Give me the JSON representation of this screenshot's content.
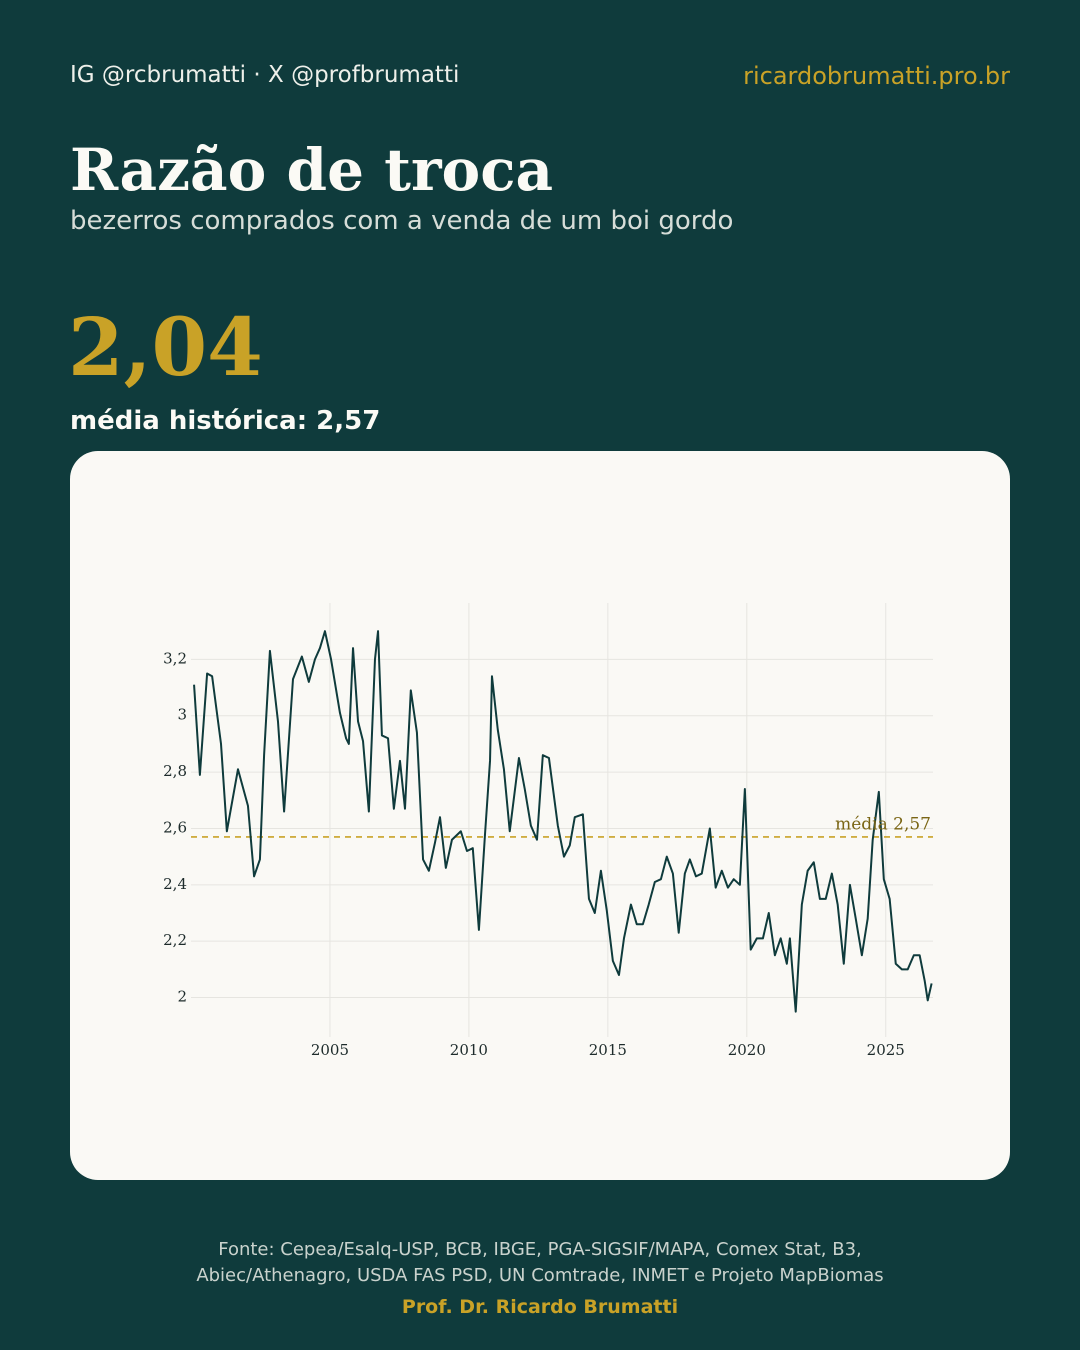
{
  "header": {
    "handle": "IG @rcbrumatti · X @profbrumatti",
    "site": "ricardobrumatti.pro.br",
    "title": "Razão de troca",
    "subtitle": "bezerros comprados com a venda de um boi gordo",
    "headline": "2,04",
    "average_label": "média histórica: 2,57"
  },
  "chart_data": {
    "type": "line",
    "color": "#0f3b3c",
    "x": [
      2000.11,
      2000.32,
      2000.58,
      2000.76,
      2001.08,
      2001.29,
      2001.69,
      2002.05,
      2002.27,
      2002.48,
      2002.63,
      2002.84,
      2003.13,
      2003.35,
      2003.67,
      2003.99,
      2004.24,
      2004.46,
      2004.64,
      2004.82,
      2005.04,
      2005.36,
      2005.58,
      2005.68,
      2005.83,
      2006.01,
      2006.19,
      2006.4,
      2006.62,
      2006.73,
      2006.87,
      2007.09,
      2007.3,
      2007.52,
      2007.7,
      2007.91,
      2008.13,
      2008.35,
      2008.56,
      2008.78,
      2008.96,
      2009.17,
      2009.39,
      2009.71,
      2009.93,
      2010.14,
      2010.36,
      2010.58,
      2010.76,
      2010.83,
      2011.04,
      2011.26,
      2011.47,
      2011.8,
      2012.01,
      2012.23,
      2012.45,
      2012.66,
      2012.88,
      2013.2,
      2013.42,
      2013.63,
      2013.81,
      2014.1,
      2014.32,
      2014.53,
      2014.75,
      2014.96,
      2015.18,
      2015.4,
      2015.58,
      2015.83,
      2016.04,
      2016.26,
      2016.47,
      2016.69,
      2016.91,
      2017.12,
      2017.34,
      2017.55,
      2017.77,
      2017.95,
      2018.17,
      2018.38,
      2018.67,
      2018.88,
      2019.1,
      2019.32,
      2019.53,
      2019.75,
      2019.93,
      2020.14,
      2020.36,
      2020.58,
      2020.79,
      2021.01,
      2021.22,
      2021.44,
      2021.55,
      2021.76,
      2021.98,
      2022.19,
      2022.41,
      2022.63,
      2022.84,
      2023.06,
      2023.27,
      2023.49,
      2023.71,
      2023.92,
      2024.14,
      2024.35,
      2024.53,
      2024.75,
      2024.93,
      2025.14,
      2025.36,
      2025.58,
      2025.79,
      2026.01,
      2026.22,
      2026.4,
      2026.51,
      2026.65
    ],
    "values": [
      3.11,
      2.79,
      3.15,
      3.14,
      2.9,
      2.59,
      2.81,
      2.68,
      2.43,
      2.49,
      2.86,
      3.23,
      2.98,
      2.66,
      3.13,
      3.21,
      3.12,
      3.2,
      3.24,
      3.3,
      3.2,
      3.01,
      2.92,
      2.9,
      3.24,
      2.98,
      2.91,
      2.66,
      3.2,
      3.3,
      2.93,
      2.92,
      2.67,
      2.84,
      2.67,
      3.09,
      2.94,
      2.49,
      2.45,
      2.55,
      2.64,
      2.46,
      2.56,
      2.59,
      2.52,
      2.53,
      2.24,
      2.58,
      2.84,
      3.14,
      2.95,
      2.81,
      2.59,
      2.85,
      2.74,
      2.61,
      2.56,
      2.86,
      2.85,
      2.61,
      2.5,
      2.54,
      2.64,
      2.65,
      2.35,
      2.3,
      2.45,
      2.31,
      2.13,
      2.08,
      2.21,
      2.33,
      2.26,
      2.26,
      2.33,
      2.41,
      2.42,
      2.5,
      2.44,
      2.23,
      2.44,
      2.49,
      2.43,
      2.44,
      2.6,
      2.39,
      2.45,
      2.39,
      2.42,
      2.4,
      2.74,
      2.17,
      2.21,
      2.21,
      2.3,
      2.15,
      2.21,
      2.12,
      2.21,
      1.95,
      2.33,
      2.45,
      2.48,
      2.35,
      2.35,
      2.44,
      2.33,
      2.12,
      2.4,
      2.28,
      2.15,
      2.28,
      2.56,
      2.73,
      2.42,
      2.35,
      2.12,
      2.1,
      2.1,
      2.15,
      2.15,
      2.06,
      1.99,
      2.05
    ],
    "mean": 2.57,
    "mean_color": "#c9a227",
    "annotation": "média 2,57",
    "xlim": [
      2000,
      2026.7
    ],
    "xticks": [
      2005,
      2010,
      2015,
      2020,
      2025
    ],
    "ylim": [
      1.86,
      3.4
    ],
    "yticks": [
      2,
      {
        "value": 2.2,
        "label": "2,2"
      },
      {
        "value": 2.4,
        "label": "2,4"
      },
      {
        "value": 2.6,
        "label": "2,6"
      },
      {
        "value": 2.8,
        "label": "2,8"
      },
      3,
      {
        "value": 3.2,
        "label": "3,2"
      }
    ],
    "grid": true
  },
  "footer": {
    "source": "Fonte: Cepea/Esalq-USP, BCB, IBGE, PGA-SIGSIF/MAPA, Comex Stat, B3, Abiec/Athenagro, USDA FAS PSD, UN Comtrade, INMET e Projeto MapBiomas",
    "author": "Prof. Dr. Ricardo Brumatti"
  }
}
